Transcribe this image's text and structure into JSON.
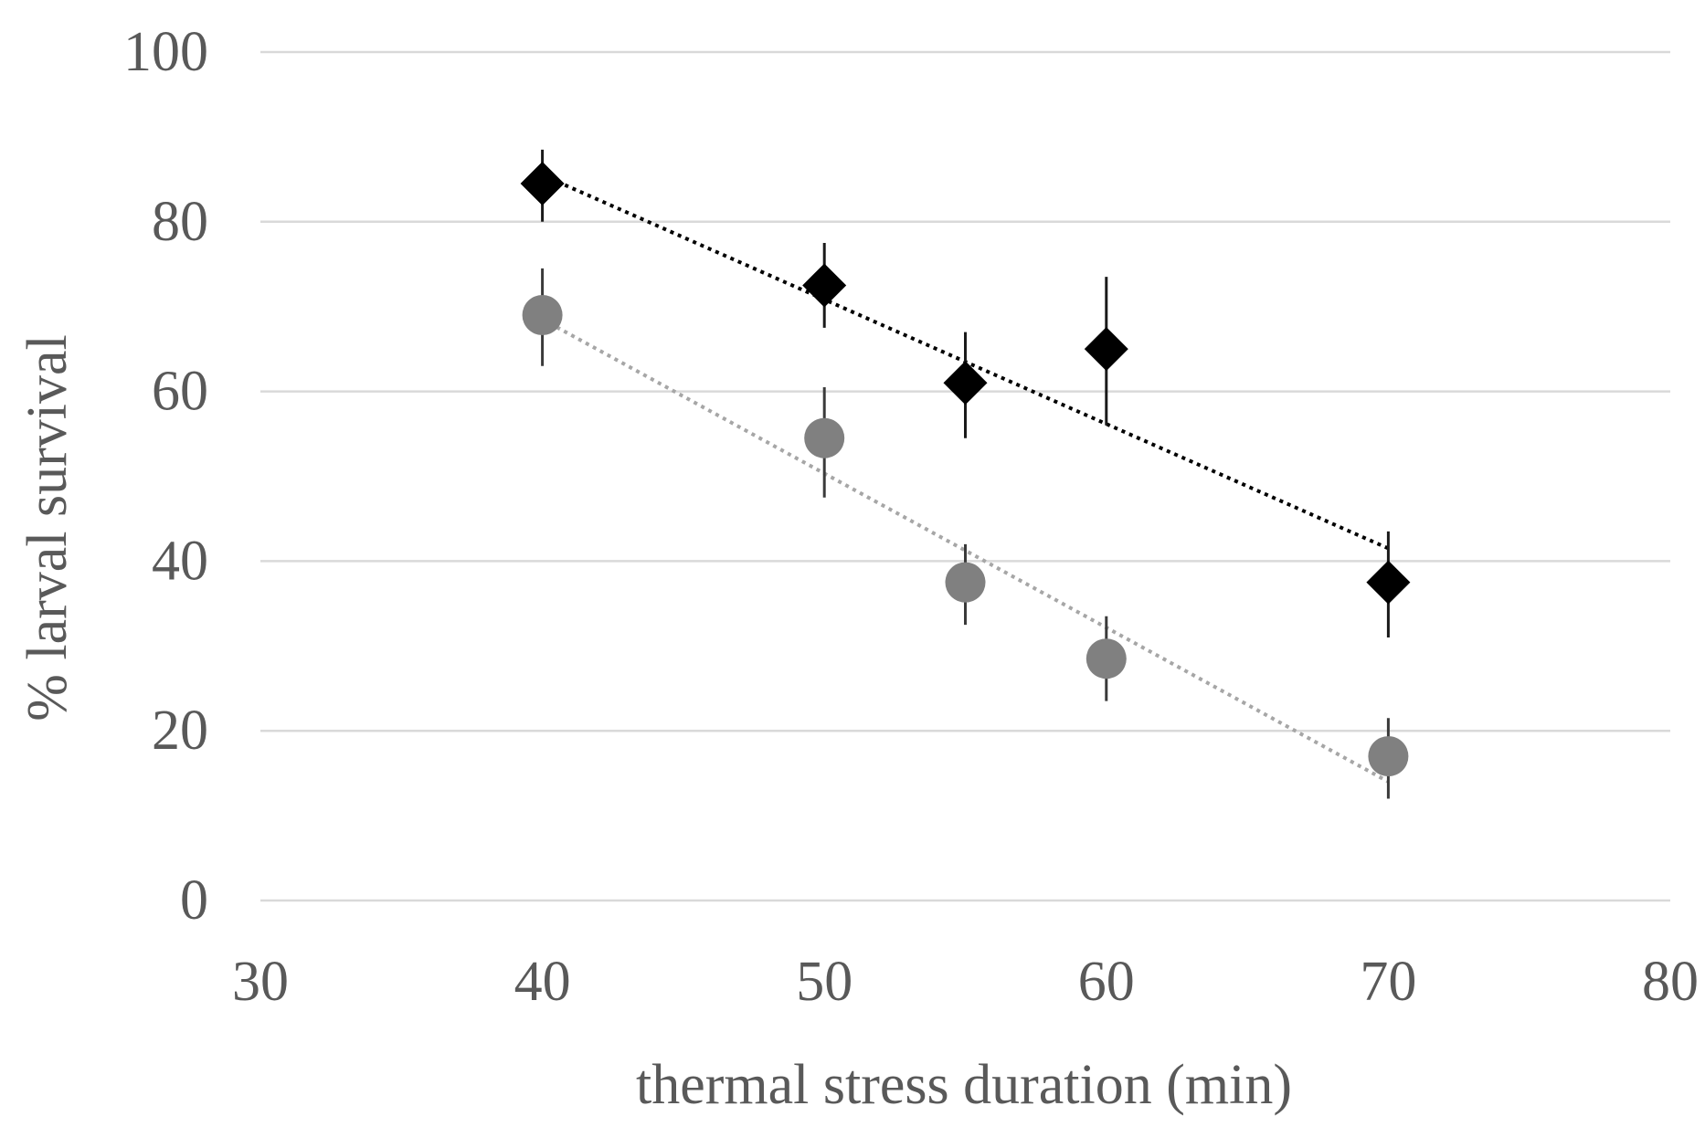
{
  "chart_data": {
    "type": "scatter",
    "title": "",
    "xlabel": "thermal stress duration (min)",
    "ylabel": "% larval survival",
    "xlim": [
      30,
      80
    ],
    "ylim": [
      0,
      100
    ],
    "xticks": [
      "30",
      "40",
      "50",
      "60",
      "70",
      "80"
    ],
    "yticks": [
      "0",
      "20",
      "40",
      "60",
      "80",
      "100"
    ],
    "grid": "horizontal",
    "series": [
      {
        "name": "series-diamond",
        "marker": "diamond",
        "color": "#000000",
        "trend_color": "#000000",
        "x": [
          40,
          50,
          55,
          60,
          70
        ],
        "y": [
          84.5,
          72.5,
          61,
          65,
          37.5
        ],
        "err_low": [
          80,
          67.5,
          54.5,
          56,
          31
        ],
        "err_high": [
          88.5,
          77.5,
          67,
          73.5,
          43.5
        ],
        "trendline": {
          "x": [
            40,
            70
          ],
          "y": [
            85.5,
            41.5
          ]
        }
      },
      {
        "name": "series-circle",
        "marker": "circle",
        "color": "#808080",
        "trend_color": "#a6a6a6",
        "x": [
          40,
          50,
          55,
          60,
          70
        ],
        "y": [
          69,
          54.5,
          37.5,
          28.5,
          17
        ],
        "err_low": [
          63,
          47.5,
          32.5,
          23.5,
          12
        ],
        "err_high": [
          74.5,
          60.5,
          42,
          33.5,
          21.5
        ],
        "trendline": {
          "x": [
            40,
            70
          ],
          "y": [
            68.5,
            14
          ]
        }
      }
    ]
  }
}
